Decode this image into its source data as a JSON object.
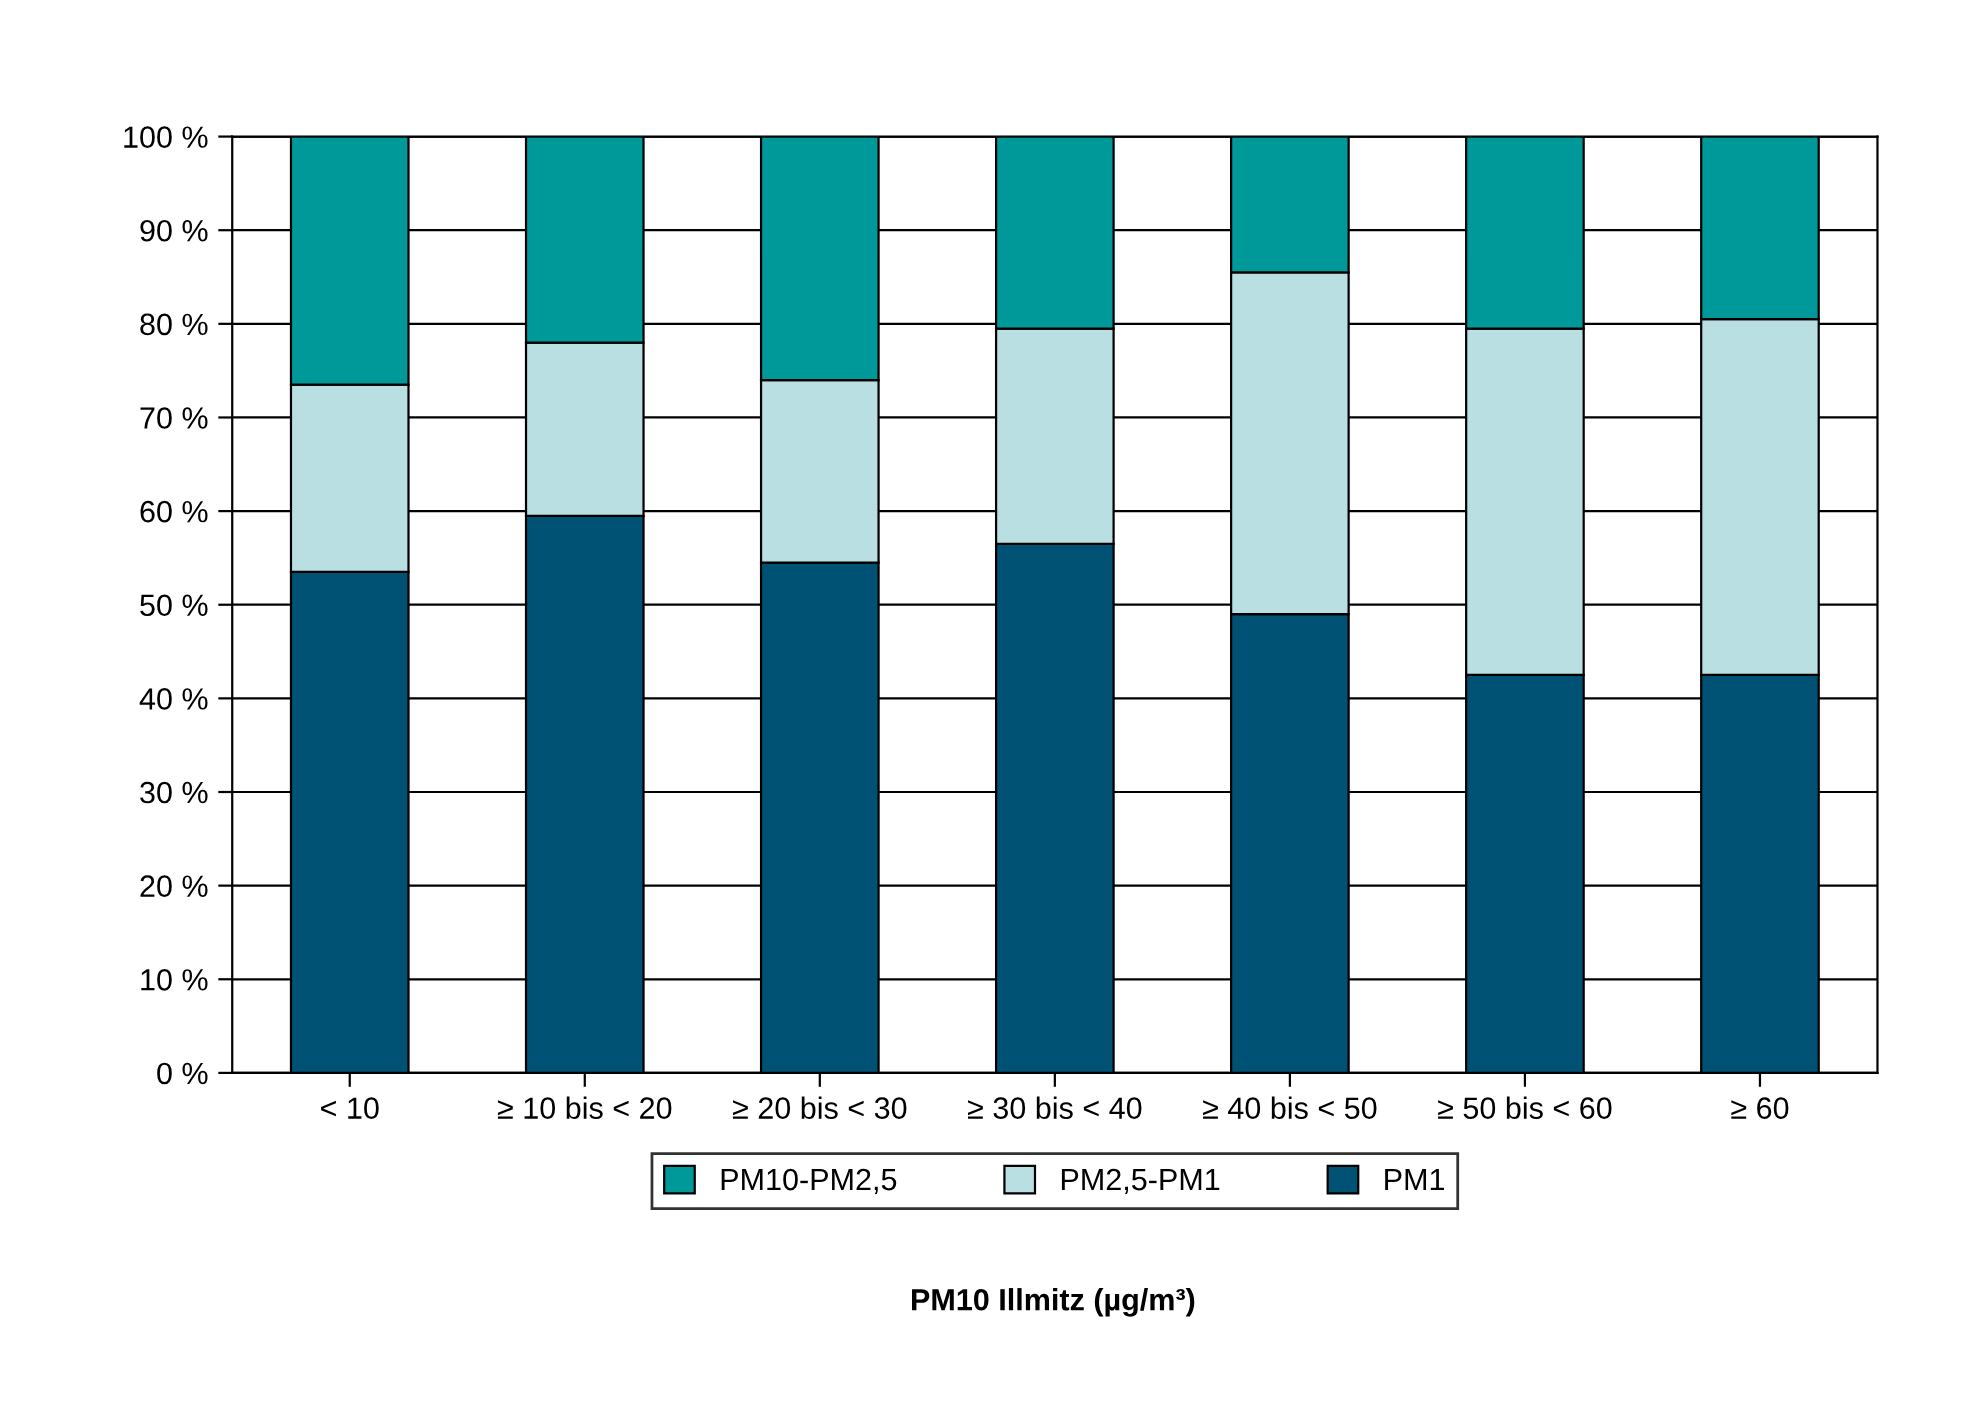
{
  "chart_data": {
    "type": "bar",
    "stacked": true,
    "annotations": [
      "PM10 Illmitz (µg/m³)"
    ],
    "categories": [
      "< 10",
      "≥ 10 bis < 20",
      "≥ 20 bis < 30",
      "≥ 30 bis < 40",
      "≥ 40 bis < 50",
      "≥ 50 bis < 60",
      "≥ 60"
    ],
    "series": [
      {
        "name": "PM1",
        "color": "#005274",
        "values": [
          53.5,
          59.5,
          54.5,
          56.5,
          49,
          42.5,
          42.5
        ]
      },
      {
        "name": "PM2,5-PM1",
        "color": "#b9dfe2",
        "values": [
          20,
          18.5,
          19.5,
          23,
          36.5,
          37,
          38
        ]
      },
      {
        "name": "PM10-PM2,5",
        "color": "#009999",
        "values": [
          26.5,
          22,
          26,
          20.5,
          14.5,
          20.5,
          19.5
        ]
      }
    ],
    "ylim": [
      0,
      100
    ],
    "yticks": [
      {
        "value": 0,
        "label": "0 %"
      },
      {
        "value": 10,
        "label": "10 %"
      },
      {
        "value": 20,
        "label": "20 %"
      },
      {
        "value": 30,
        "label": "30 %"
      },
      {
        "value": 40,
        "label": "40 %"
      },
      {
        "value": 50,
        "label": "50 %"
      },
      {
        "value": 60,
        "label": "60 %"
      },
      {
        "value": 70,
        "label": "70 %"
      },
      {
        "value": 80,
        "label": "80 %"
      },
      {
        "value": 90,
        "label": "90 %"
      },
      {
        "value": 100,
        "label": "100 %"
      }
    ],
    "grid": "y",
    "legend": "bottom"
  }
}
